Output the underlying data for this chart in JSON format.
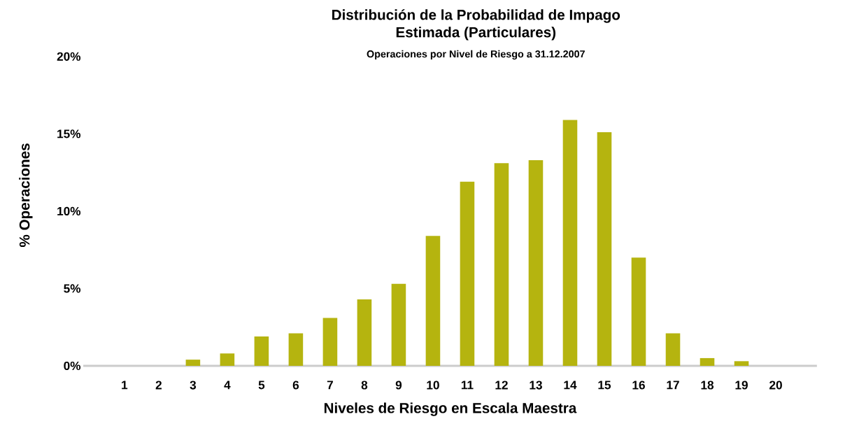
{
  "chart_data": {
    "type": "bar",
    "title": "Distribución de la Probabilidad de Impago Estimada (Particulares)",
    "subtitle": "Operaciones por Nivel de Riesgo a 31.12.2007",
    "xlabel": "Niveles de Riesgo en Escala Maestra",
    "ylabel": "% Operaciones",
    "categories": [
      "1",
      "2",
      "3",
      "4",
      "5",
      "6",
      "7",
      "8",
      "9",
      "10",
      "11",
      "12",
      "13",
      "14",
      "15",
      "16",
      "17",
      "18",
      "19",
      "20"
    ],
    "values": [
      0,
      0,
      0.4,
      0.8,
      1.9,
      2.1,
      3.1,
      4.3,
      5.3,
      8.4,
      11.9,
      13.1,
      13.3,
      15.9,
      15.1,
      7.0,
      2.1,
      0.5,
      0.3,
      0
    ],
    "color": "#b5b40f",
    "ylim": [
      0,
      20
    ],
    "yticks": [
      {
        "value": 0,
        "label": "0%"
      },
      {
        "value": 5,
        "label": "5%"
      },
      {
        "value": 10,
        "label": "10%"
      },
      {
        "value": 15,
        "label": "15%"
      },
      {
        "value": 20,
        "label": "20%"
      }
    ],
    "grid": false
  }
}
